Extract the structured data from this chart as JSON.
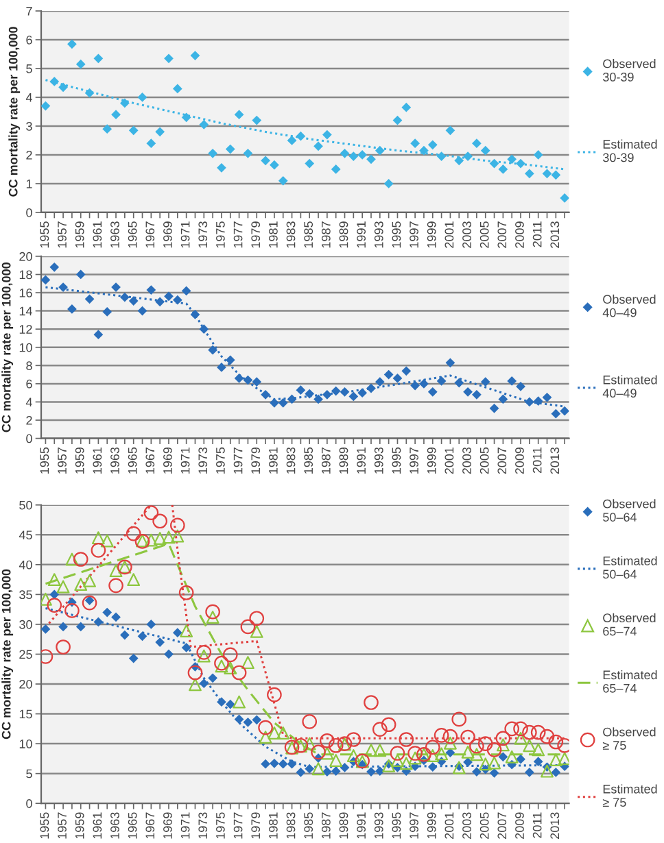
{
  "chart_data": [
    {
      "type": "scatter",
      "ylabel": "CC mortality rate per 100,000",
      "ylim": [
        0,
        7
      ],
      "yticks": [
        0,
        1,
        2,
        3,
        4,
        5,
        6,
        7
      ],
      "xlim": [
        1954.5,
        2014.5
      ],
      "grid": "y",
      "legend": "right",
      "x": [
        1955,
        1956,
        1957,
        1958,
        1959,
        1960,
        1961,
        1962,
        1963,
        1964,
        1965,
        1966,
        1967,
        1968,
        1969,
        1970,
        1971,
        1972,
        1973,
        1974,
        1975,
        1976,
        1977,
        1978,
        1979,
        1980,
        1981,
        1982,
        1983,
        1984,
        1985,
        1986,
        1987,
        1988,
        1989,
        1990,
        1991,
        1992,
        1993,
        1994,
        1995,
        1996,
        1997,
        1998,
        1999,
        2000,
        2001,
        2002,
        2003,
        2004,
        2005,
        2006,
        2007,
        2008,
        2009,
        2010,
        2011,
        2012,
        2013,
        2014
      ],
      "xticks": [
        1955,
        {
          "value": 1956,
          "label": null
        },
        1957,
        {
          "value": 1958,
          "label": null
        },
        1959,
        {
          "value": 1960,
          "label": null
        },
        1961,
        {
          "value": 1962,
          "label": null
        },
        1963,
        {
          "value": 1964,
          "label": null
        },
        1965,
        {
          "value": 1966,
          "label": null
        },
        1967,
        {
          "value": 1968,
          "label": null
        },
        1969,
        {
          "value": 1970,
          "label": null
        },
        1971,
        {
          "value": 1972,
          "label": null
        },
        1973,
        {
          "value": 1974,
          "label": null
        },
        1975,
        {
          "value": 1976,
          "label": null
        },
        1977,
        {
          "value": 1978,
          "label": null
        },
        1979,
        {
          "value": 1980,
          "label": null
        },
        1981,
        {
          "value": 1982,
          "label": null
        },
        1983,
        {
          "value": 1984,
          "label": null
        },
        1985,
        {
          "value": 1986,
          "label": null
        },
        1987,
        {
          "value": 1988,
          "label": null
        },
        1989,
        {
          "value": 1990,
          "label": null
        },
        1991,
        {
          "value": 1992,
          "label": null
        },
        1993,
        {
          "value": 1994,
          "label": null
        },
        1995,
        {
          "value": 1996,
          "label": null
        },
        1997,
        {
          "value": 1998,
          "label": null
        },
        1999,
        {
          "value": 2000,
          "label": null
        },
        2001,
        {
          "value": 2002,
          "label": null
        },
        2003,
        {
          "value": 2004,
          "label": null
        },
        2005,
        {
          "value": 2006,
          "label": null
        },
        2007,
        {
          "value": 2008,
          "label": null
        },
        2009,
        {
          "value": 2010,
          "label": null
        },
        2011,
        {
          "value": 2012,
          "label": null
        },
        2013,
        {
          "value": 2014,
          "label": null
        }
      ],
      "series": [
        {
          "name": "Observed\n30-39",
          "marker": "diamond",
          "color": "#3cb4e5",
          "values": [
            3.7,
            4.55,
            4.35,
            5.85,
            5.15,
            4.15,
            5.35,
            2.9,
            3.4,
            3.8,
            2.85,
            4.0,
            2.4,
            2.8,
            5.35,
            4.3,
            3.3,
            5.45,
            3.05,
            2.05,
            1.55,
            2.2,
            3.4,
            2.05,
            3.2,
            1.8,
            1.65,
            1.1,
            2.5,
            2.65,
            1.7,
            2.3,
            2.7,
            1.5,
            2.05,
            1.95,
            2.0,
            1.85,
            2.15,
            1.0,
            3.2,
            3.65,
            2.4,
            2.15,
            2.35,
            1.95,
            2.85,
            1.8,
            1.95,
            2.4,
            2.15,
            1.7,
            1.5,
            1.85,
            1.7,
            1.35,
            2.0,
            1.35,
            1.3,
            0.5
          ]
        },
        {
          "name": "Estimated\n30-39",
          "type": "line",
          "line_style": "dotted",
          "color": "#3cb4e5",
          "x": [
            1955,
            1960,
            1965,
            1970,
            1975,
            1980,
            1985,
            1990,
            1995,
            2000,
            2005,
            2010,
            2014
          ],
          "values": [
            4.6,
            4.2,
            3.8,
            3.45,
            3.1,
            2.8,
            2.55,
            2.35,
            2.15,
            2.0,
            1.8,
            1.65,
            1.5
          ]
        }
      ]
    },
    {
      "type": "scatter",
      "ylabel": "CC mortality rate per 100,000",
      "ylim": [
        0,
        20
      ],
      "yticks": [
        0,
        2,
        4,
        6,
        8,
        10,
        12,
        14,
        16,
        18,
        20
      ],
      "xlim": [
        1954.5,
        2014.5
      ],
      "grid": "y",
      "legend": "right",
      "x": [
        1955,
        1956,
        1957,
        1958,
        1959,
        1960,
        1961,
        1962,
        1963,
        1964,
        1965,
        1966,
        1967,
        1968,
        1969,
        1970,
        1971,
        1972,
        1973,
        1974,
        1975,
        1976,
        1977,
        1978,
        1979,
        1980,
        1981,
        1982,
        1983,
        1984,
        1985,
        1986,
        1987,
        1988,
        1989,
        1990,
        1991,
        1992,
        1993,
        1994,
        1995,
        1996,
        1997,
        1998,
        1999,
        2000,
        2001,
        2002,
        2003,
        2004,
        2005,
        2006,
        2007,
        2008,
        2009,
        2010,
        2011,
        2012,
        2013,
        2014
      ],
      "xticks": [
        1955,
        {
          "value": 1956,
          "label": null
        },
        1957,
        {
          "value": 1958,
          "label": null
        },
        1959,
        {
          "value": 1960,
          "label": null
        },
        1961,
        {
          "value": 1962,
          "label": null
        },
        1963,
        {
          "value": 1964,
          "label": null
        },
        1965,
        {
          "value": 1966,
          "label": null
        },
        1967,
        {
          "value": 1968,
          "label": null
        },
        1969,
        {
          "value": 1970,
          "label": null
        },
        1971,
        {
          "value": 1972,
          "label": null
        },
        1973,
        {
          "value": 1974,
          "label": null
        },
        1975,
        {
          "value": 1976,
          "label": null
        },
        1977,
        {
          "value": 1978,
          "label": null
        },
        1979,
        {
          "value": 1980,
          "label": null
        },
        1981,
        {
          "value": 1982,
          "label": null
        },
        1983,
        {
          "value": 1984,
          "label": null
        },
        1985,
        {
          "value": 1986,
          "label": null
        },
        1987,
        {
          "value": 1988,
          "label": null
        },
        1989,
        {
          "value": 1990,
          "label": null
        },
        1991,
        {
          "value": 1992,
          "label": null
        },
        1993,
        {
          "value": 1994,
          "label": null
        },
        1995,
        {
          "value": 1996,
          "label": null
        },
        1997,
        {
          "value": 1998,
          "label": null
        },
        1999,
        {
          "value": 2000,
          "label": null
        },
        2001,
        {
          "value": 2002,
          "label": null
        },
        2003,
        {
          "value": 2004,
          "label": null
        },
        2005,
        {
          "value": 2006,
          "label": null
        },
        2007,
        {
          "value": 2008,
          "label": null
        },
        2009,
        {
          "value": 2010,
          "label": null
        },
        2011,
        {
          "value": 2012,
          "label": null
        },
        2013,
        {
          "value": 2014,
          "label": null
        }
      ],
      "series": [
        {
          "name": "Observed\n40–49",
          "marker": "diamond",
          "color": "#2a6ebb",
          "values": [
            17.4,
            18.8,
            16.6,
            14.2,
            18.0,
            15.3,
            11.4,
            13.9,
            16.6,
            15.5,
            15.1,
            14.0,
            16.3,
            15.0,
            15.6,
            15.2,
            16.2,
            13.6,
            12.0,
            9.7,
            7.8,
            8.6,
            6.6,
            6.4,
            6.2,
            4.8,
            3.9,
            3.9,
            4.3,
            5.3,
            4.9,
            4.3,
            4.8,
            5.2,
            5.1,
            4.6,
            5.0,
            5.5,
            6.2,
            7.0,
            6.6,
            7.4,
            5.8,
            6.0,
            5.1,
            6.3,
            8.3,
            6.1,
            5.1,
            4.8,
            6.2,
            3.3,
            4.3,
            6.3,
            5.7,
            4.0,
            4.1,
            4.5,
            2.7,
            3.0
          ]
        },
        {
          "name": "Estimated\n40–49",
          "type": "line",
          "line_style": "dotted",
          "color": "#2a6ebb",
          "x": [
            1955,
            1971,
            1972,
            1973,
            1975,
            1977,
            1979,
            1981,
            1983,
            1990,
            1996,
            2001,
            2010,
            2014
          ],
          "values": [
            16.6,
            14.8,
            13.6,
            12.0,
            9.0,
            7.0,
            5.5,
            4.3,
            4.4,
            5.2,
            6.1,
            6.9,
            4.0,
            3.5
          ]
        }
      ]
    },
    {
      "type": "scatter",
      "ylabel": "CC mortality rate per 100,000",
      "ylim": [
        0,
        50
      ],
      "yticks": [
        0,
        5,
        10,
        15,
        20,
        25,
        30,
        35,
        40,
        45,
        50
      ],
      "xlim": [
        1954.5,
        2014.5
      ],
      "grid": "y",
      "legend": "right",
      "x": [
        1955,
        1956,
        1957,
        1958,
        1959,
        1960,
        1961,
        1962,
        1963,
        1964,
        1965,
        1966,
        1967,
        1968,
        1969,
        1970,
        1971,
        1972,
        1973,
        1974,
        1975,
        1976,
        1977,
        1978,
        1979,
        1980,
        1981,
        1982,
        1983,
        1984,
        1985,
        1986,
        1987,
        1988,
        1989,
        1990,
        1991,
        1992,
        1993,
        1994,
        1995,
        1996,
        1997,
        1998,
        1999,
        2000,
        2001,
        2002,
        2003,
        2004,
        2005,
        2006,
        2007,
        2008,
        2009,
        2010,
        2011,
        2012,
        2013,
        2014
      ],
      "xticks": [
        1955,
        {
          "value": 1956,
          "label": null
        },
        1957,
        {
          "value": 1958,
          "label": null
        },
        1959,
        {
          "value": 1960,
          "label": null
        },
        1961,
        {
          "value": 1962,
          "label": null
        },
        1963,
        {
          "value": 1964,
          "label": null
        },
        1965,
        {
          "value": 1966,
          "label": null
        },
        1967,
        {
          "value": 1968,
          "label": null
        },
        1969,
        {
          "value": 1970,
          "label": null
        },
        1971,
        {
          "value": 1972,
          "label": null
        },
        1973,
        {
          "value": 1974,
          "label": null
        },
        1975,
        {
          "value": 1976,
          "label": null
        },
        1977,
        {
          "value": 1978,
          "label": null
        },
        1979,
        {
          "value": 1980,
          "label": null
        },
        1981,
        {
          "value": 1982,
          "label": null
        },
        1983,
        {
          "value": 1984,
          "label": null
        },
        1985,
        {
          "value": 1986,
          "label": null
        },
        1987,
        {
          "value": 1988,
          "label": null
        },
        1989,
        {
          "value": 1990,
          "label": null
        },
        1991,
        {
          "value": 1992,
          "label": null
        },
        1993,
        {
          "value": 1994,
          "label": null
        },
        1995,
        {
          "value": 1996,
          "label": null
        },
        1997,
        {
          "value": 1998,
          "label": null
        },
        1999,
        {
          "value": 2000,
          "label": null
        },
        2001,
        {
          "value": 2002,
          "label": null
        },
        2003,
        {
          "value": 2004,
          "label": null
        },
        2005,
        {
          "value": 2006,
          "label": null
        },
        2007,
        {
          "value": 2008,
          "label": null
        },
        2009,
        {
          "value": 2010,
          "label": null
        },
        2011,
        {
          "value": 2012,
          "label": null
        },
        2013,
        {
          "value": 2014,
          "label": null
        }
      ],
      "series": [
        {
          "name": "Observed\n50–64",
          "marker": "diamond",
          "color": "#2a6ebb",
          "values": [
            29.2,
            35.0,
            29.6,
            33.7,
            29.6,
            34.0,
            30.4,
            32.0,
            31.2,
            28.2,
            24.3,
            28.0,
            30.0,
            27.0,
            25.0,
            28.6,
            26.1,
            22.9,
            20.1,
            21.0,
            17.0,
            16.6,
            14.1,
            13.6,
            14.0,
            6.6,
            6.7,
            6.6,
            6.6,
            5.2,
            5.8,
            7.6,
            5.3,
            5.4,
            6.0,
            7.0,
            6.5,
            5.3,
            5.4,
            6.6,
            6.0,
            5.4,
            6.2,
            7.2,
            6.1,
            7.0,
            8.5,
            6.2,
            6.9,
            5.3,
            5.7,
            5.1,
            7.8,
            6.5,
            7.4,
            5.2,
            7.0,
            6.1,
            5.2,
            6.2
          ]
        },
        {
          "name": "Estimated\n50–64",
          "type": "line",
          "line_style": "dotted",
          "color": "#2a6ebb",
          "x": [
            1955,
            1971,
            1973,
            1975,
            1977,
            1980,
            1983,
            1985,
            2014
          ],
          "values": [
            32.7,
            26.8,
            21.0,
            17.0,
            13.5,
            9.5,
            7.0,
            6.1,
            6.4
          ]
        },
        {
          "name": "Observed\n65–74",
          "marker": "triangle",
          "color": "#8dc63f",
          "values": [
            34.2,
            37.5,
            36.3,
            40.9,
            36.7,
            37.3,
            44.5,
            44.0,
            39.0,
            39.6,
            37.5,
            44.0,
            44.1,
            44.4,
            44.6,
            44.8,
            28.9,
            19.9,
            24.7,
            31.2,
            23.0,
            22.7,
            17.0,
            23.6,
            28.8,
            11.1,
            11.8,
            11.8,
            9.3,
            9.6,
            10.0,
            5.8,
            8.4,
            7.2,
            9.9,
            8.0,
            7.0,
            8.9,
            8.9,
            6.3,
            7.2,
            6.7,
            7.6,
            8.2,
            8.0,
            8.3,
            10.1,
            6.0,
            8.6,
            8.2,
            6.6,
            6.8,
            9.8,
            7.8,
            10.9,
            9.7,
            9.0,
            5.4,
            7.3,
            7.5
          ]
        },
        {
          "name": "Estimated\n65–74",
          "type": "line",
          "line_style": "dashed",
          "color": "#8dc63f",
          "x": [
            1955,
            1969,
            1970,
            1972,
            1975,
            1978,
            1981,
            1984,
            1986,
            2014
          ],
          "values": [
            36.8,
            43.5,
            40.0,
            33.0,
            25.0,
            19.0,
            13.5,
            10.0,
            8.2,
            8.2
          ]
        },
        {
          "name": "Observed\n≥ 75",
          "marker": "circle",
          "color": "#e0403f",
          "values": [
            24.6,
            33.2,
            26.2,
            32.3,
            40.9,
            33.6,
            42.4,
            null,
            36.5,
            39.6,
            45.2,
            43.9,
            48.7,
            47.3,
            null,
            46.6,
            35.3,
            21.9,
            25.3,
            32.1,
            23.5,
            24.9,
            21.9,
            29.6,
            31.0,
            12.7,
            18.2,
            null,
            9.4,
            9.7,
            13.7,
            8.6,
            10.5,
            9.7,
            10.0,
            10.7,
            7.1,
            16.9,
            12.4,
            13.2,
            8.4,
            10.7,
            8.4,
            8.2,
            9.4,
            11.4,
            11.2,
            14.1,
            11.1,
            9.6,
            10.0,
            9.0,
            10.9,
            12.5,
            12.5,
            11.9,
            11.9,
            11.2,
            10.3,
            9.7
          ]
        },
        {
          "name": "Estimated\n≥ 75",
          "type": "line",
          "line_style": "dotted",
          "color": "#e0403f",
          "x": [
            1955,
            1967,
            1968,
            1969.4,
            1970.2,
            1971.5,
            1979,
            1982,
            1983,
            2014
          ],
          "values": [
            29.5,
            50,
            null,
            50,
            40,
            26.2,
            27.2,
            11.5,
            10.9,
            10.9
          ]
        }
      ]
    }
  ]
}
